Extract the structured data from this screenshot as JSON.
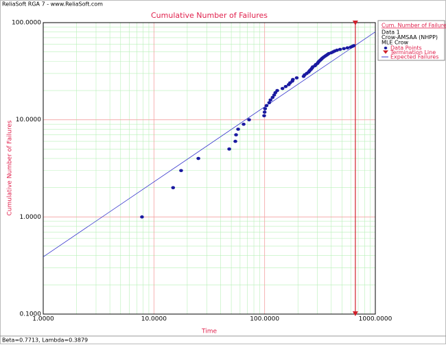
{
  "header": "ReliaSoft RGA 7 - www.ReliaSoft.com",
  "footer": "Beta=0.7713, Lambda=0.3879",
  "chart_data": {
    "type": "scatter",
    "title": "Cumulative Number of Failures",
    "x_label": "Time",
    "y_label": "Cumulative Number of Failures",
    "log_x": true,
    "log_y": true,
    "grid": true,
    "xlim": [
      1,
      1000
    ],
    "ylim": [
      0.1,
      100
    ],
    "xticks": [
      {
        "value": 1,
        "label": "1.0000"
      },
      {
        "value": 10,
        "label": "10.0000"
      },
      {
        "value": 100,
        "label": "100.0000"
      },
      {
        "value": 1000,
        "label": "1000.0000"
      }
    ],
    "yticks": [
      {
        "value": 0.1,
        "label": "0.1000"
      },
      {
        "value": 1,
        "label": "1.0000"
      },
      {
        "value": 10,
        "label": "10.0000"
      },
      {
        "value": 100,
        "label": "100.0000"
      }
    ],
    "legend": {
      "title": "Cum. Number of Failures",
      "lines": [
        "Data 1",
        "Crow-AMSAA (NHPP)",
        "MLE Crow"
      ],
      "position": "right"
    },
    "series": [
      {
        "name": "Data Points",
        "color": "#1a1aa0",
        "x": [
          7.8,
          14.9,
          17.6,
          25.2,
          47.9,
          54.4,
          55.2,
          57.6,
          64.6,
          72.4,
          99,
          100,
          101,
          104,
          110,
          113,
          118,
          122,
          125,
          130,
          145,
          155,
          165,
          170,
          178,
          180,
          195,
          225,
          230,
          240,
          250,
          255,
          262,
          268,
          272,
          285,
          290,
          300,
          305,
          310,
          318,
          325,
          332,
          340,
          350,
          360,
          370,
          380,
          400,
          415,
          430,
          450,
          480,
          520,
          560,
          600,
          620,
          640
        ],
        "values": [
          1,
          2,
          3,
          4,
          5,
          6,
          7,
          8,
          9,
          10,
          11,
          12,
          13,
          14,
          15,
          16,
          17,
          18,
          19,
          20,
          21,
          22,
          23,
          24,
          25,
          26,
          27,
          28,
          29,
          30,
          31,
          32,
          33,
          34,
          35,
          36,
          37,
          38,
          39,
          40,
          41,
          42,
          43,
          44,
          45,
          46,
          47,
          48,
          49,
          50,
          51,
          52,
          53,
          54,
          55,
          56,
          57,
          58
        ]
      },
      {
        "name": "Expected Failures",
        "color": "#3333cc",
        "x": [
          1,
          1000
        ],
        "values": [
          0.388,
          80.4
        ]
      }
    ],
    "termination_line": {
      "name": "Termination Line",
      "x": 660,
      "color": "#d0202a"
    }
  }
}
